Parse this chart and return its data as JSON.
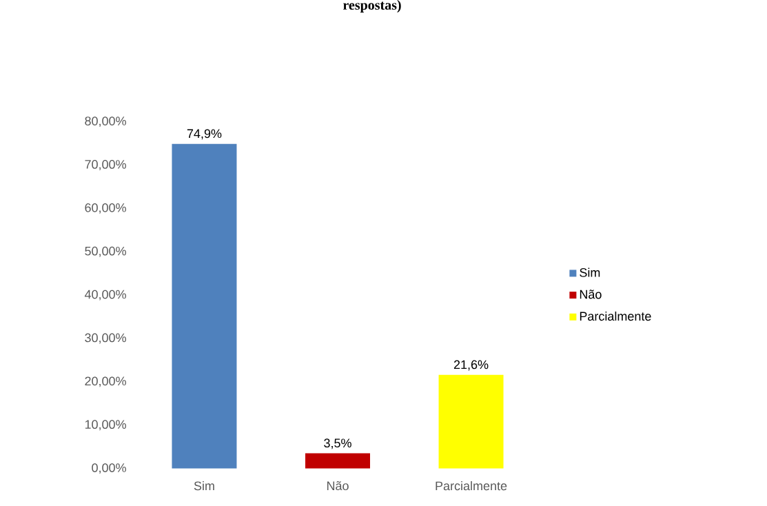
{
  "chart_data": {
    "type": "bar",
    "title": "respostas)",
    "categories": [
      "Sim",
      "Não",
      "Parcialmente"
    ],
    "series": [
      {
        "name": "Sim",
        "color": "#4f81bd",
        "values": [
          74.9,
          null,
          null
        ],
        "value_labels": [
          "74,9%",
          null,
          null
        ]
      },
      {
        "name": "Não",
        "color": "#c00000",
        "values": [
          null,
          3.5,
          null
        ],
        "value_labels": [
          null,
          "3,5%",
          null
        ]
      },
      {
        "name": "Parcialmente",
        "color": "#ffff00",
        "values": [
          null,
          null,
          21.6
        ],
        "value_labels": [
          null,
          null,
          "21,6%"
        ]
      }
    ],
    "ylim": [
      0,
      80
    ],
    "yticks": [
      {
        "value": 0,
        "label": "0,00%"
      },
      {
        "value": 10,
        "label": "10,00%"
      },
      {
        "value": 20,
        "label": "20,00%"
      },
      {
        "value": 30,
        "label": "30,00%"
      },
      {
        "value": 40,
        "label": "40,00%"
      },
      {
        "value": 50,
        "label": "50,00%"
      },
      {
        "value": 60,
        "label": "60,00%"
      },
      {
        "value": 70,
        "label": "70,00%"
      },
      {
        "value": 80,
        "label": "80,00%"
      }
    ],
    "legend": "right"
  }
}
